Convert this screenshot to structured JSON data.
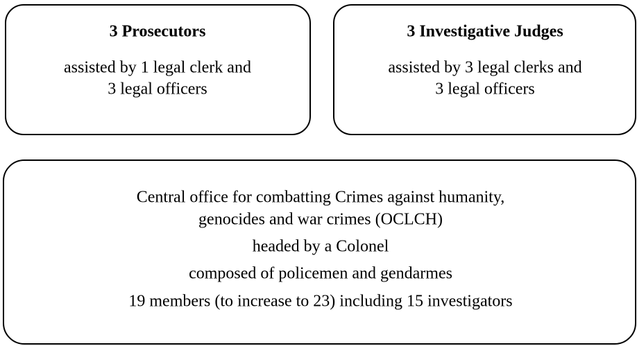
{
  "boxes": [
    {
      "title": "3 Prosecutors",
      "lines": [
        "assisted by 1 legal clerk and",
        "3 legal officers"
      ]
    },
    {
      "title": "3 Investigative Judges",
      "lines": [
        "assisted by 3 legal clerks and",
        "3 legal officers"
      ]
    },
    {
      "lines": [
        "Central office for combatting Crimes against humanity,",
        "genocides and war crimes (OCLCH)",
        "headed by a Colonel",
        "composed of policemen and gendarmes",
        "19 members (to increase to 23) including 15 investigators"
      ]
    }
  ]
}
